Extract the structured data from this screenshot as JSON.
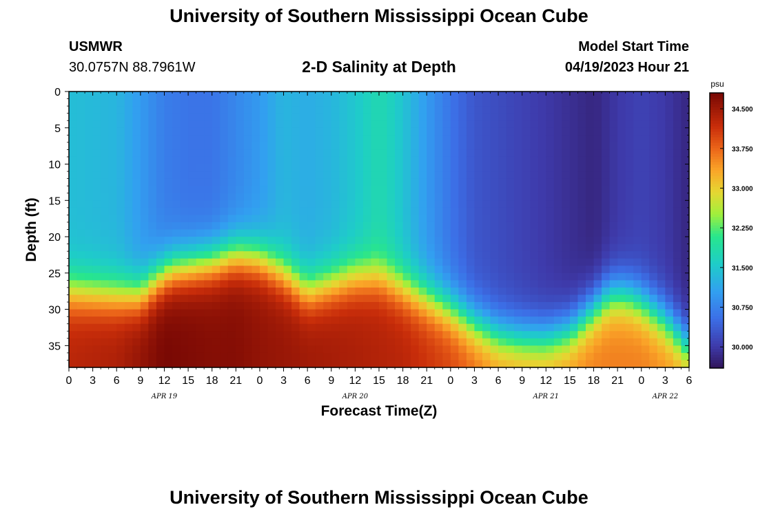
{
  "header": {
    "title": "University of Southern Mississippi Ocean Cube",
    "station_id": "USMWR",
    "station_coords": "30.0757N  88.7961W",
    "plot_title": "2-D Salinity at Depth",
    "model_label": "Model Start Time",
    "model_time": "04/19/2023 Hour 21"
  },
  "footer": {
    "title": "University of Southern Mississippi Ocean Cube"
  },
  "chart_data": {
    "type": "heatmap",
    "title": "2-D Salinity at Depth",
    "xlabel": "Forecast Time(Z)",
    "ylabel": "Depth (ft)",
    "x_range_hours": [
      0,
      78
    ],
    "y_range": [
      0,
      38
    ],
    "y_inverted": true,
    "x_tick_labels": [
      "0",
      "3",
      "6",
      "9",
      "12",
      "15",
      "18",
      "21",
      "0",
      "3",
      "6",
      "9",
      "12",
      "15",
      "18",
      "21",
      "0",
      "3",
      "6",
      "9",
      "12",
      "15",
      "18",
      "21",
      "0",
      "3",
      "6"
    ],
    "y_ticks": [
      0,
      5,
      10,
      15,
      20,
      25,
      30,
      35
    ],
    "date_labels": [
      {
        "label": "APR 19",
        "hour": 12
      },
      {
        "label": "APR 20",
        "hour": 36
      },
      {
        "label": "APR 21",
        "hour": 60
      },
      {
        "label": "APR 22",
        "hour": 75
      }
    ],
    "colorbar": {
      "unit": "psu",
      "min": 29.6,
      "max": 34.8,
      "ticks": [
        "34.500",
        "33.750",
        "33.000",
        "32.250",
        "31.500",
        "30.750",
        "30.000"
      ]
    },
    "surface_salinity_by_time": {
      "hours": [
        0,
        6,
        12,
        15,
        18,
        21,
        24,
        27,
        30,
        33,
        36,
        39,
        41,
        45,
        48,
        51,
        54,
        57,
        60,
        63,
        66,
        69,
        72,
        75,
        78
      ],
      "psu": [
        31.4,
        31.3,
        30.7,
        30.6,
        30.6,
        30.8,
        31.0,
        31.3,
        31.2,
        31.3,
        31.5,
        31.8,
        31.6,
        31.0,
        30.6,
        30.3,
        30.2,
        30.1,
        30.0,
        29.9,
        29.8,
        30.0,
        30.1,
        30.0,
        29.8
      ]
    },
    "halocline_depth_ft_by_time": {
      "hours": [
        0,
        6,
        9,
        11,
        13,
        18,
        21,
        24,
        27,
        30,
        33,
        36,
        39,
        42,
        45,
        48,
        51,
        54,
        57,
        60,
        63,
        66,
        68,
        70,
        72,
        75,
        78
      ],
      "depth": [
        27.5,
        28.0,
        28.0,
        26.0,
        24.5,
        23.5,
        22.5,
        23.0,
        25.0,
        27.5,
        26.5,
        25.5,
        25.5,
        27.0,
        28.5,
        30.0,
        32.0,
        33.5,
        34.0,
        34.0,
        33.0,
        30.0,
        28.0,
        28.0,
        29.0,
        31.5,
        35.0
      ]
    },
    "bottom_salinity_by_time": {
      "hours": [
        0,
        6,
        12,
        18,
        21,
        24,
        30,
        36,
        42,
        48,
        54,
        60,
        66,
        72,
        78
      ],
      "psu": [
        34.3,
        34.4,
        34.8,
        34.7,
        34.7,
        34.6,
        34.5,
        34.4,
        34.3,
        34.0,
        33.5,
        33.4,
        33.6,
        33.6,
        33.4
      ]
    }
  }
}
